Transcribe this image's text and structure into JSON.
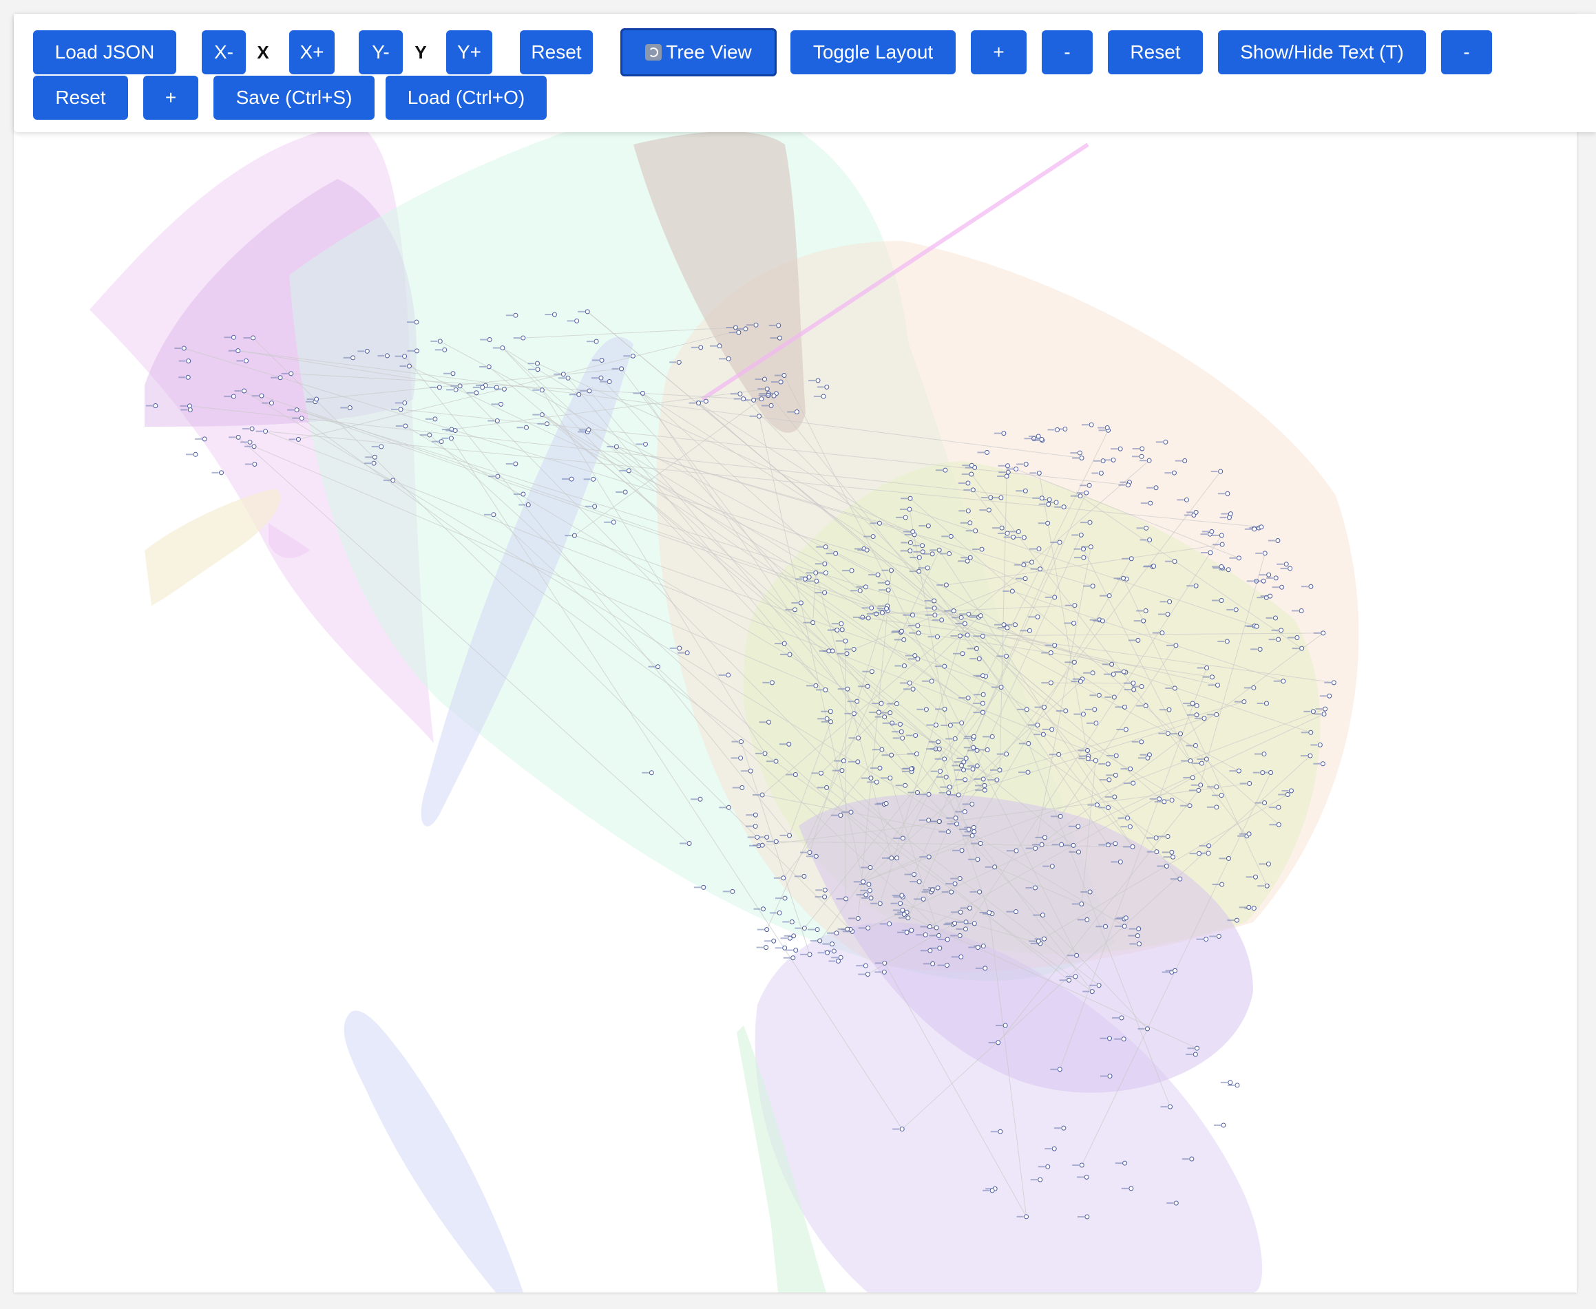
{
  "toolbar": {
    "load_json": "Load JSON",
    "x_minus": "X-",
    "x_label": "X",
    "x_plus": "X+",
    "y_minus": "Y-",
    "y_label": "Y",
    "y_plus": "Y+",
    "reset_axes": "Reset",
    "tree_view": "Tree View",
    "toggle_layout": "Toggle Layout",
    "zoom_in": "+",
    "zoom_out": "-",
    "reset_zoom": "Reset",
    "show_hide_text": "Show/Hide Text (T)",
    "text_size_minus": "-",
    "text_size_reset": "Reset",
    "text_size_plus": "+",
    "save": "Save (Ctrl+S)",
    "load": "Load (Ctrl+O)"
  },
  "icons": {
    "tree_view": "refresh-icon"
  },
  "colors": {
    "button": "#1d63e0",
    "button_text": "#ffffff",
    "node_stroke": "#4a5a9a",
    "edge": "#c9c9c9",
    "cluster_pink": "#e7b6ee",
    "cluster_violet": "#dcb4ec",
    "cluster_mint": "#d4f7e8",
    "cluster_peach": "#f9e3d3",
    "cluster_olive": "#e6efc8",
    "cluster_lavender": "#d7dcf6",
    "cluster_brown": "#d8c7c0",
    "cluster_purple": "#d4c2ef",
    "cluster_cream": "#f5ecd3",
    "cluster_green": "#d5f3dc",
    "magenta_line": "#f2b7f3"
  }
}
